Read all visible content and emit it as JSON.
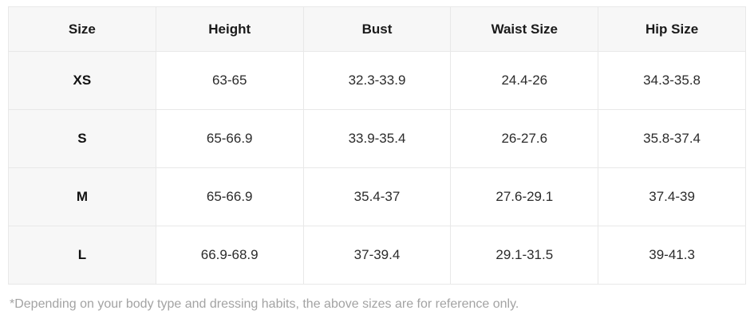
{
  "table": {
    "columns": [
      {
        "label": "Size"
      },
      {
        "label": "Height"
      },
      {
        "label": "Bust"
      },
      {
        "label": "Waist Size"
      },
      {
        "label": "Hip Size"
      }
    ],
    "rows": [
      {
        "size": "XS",
        "height": "63-65",
        "bust": "32.3-33.9",
        "waist": "24.4-26",
        "hip": "34.3-35.8"
      },
      {
        "size": "S",
        "height": "65-66.9",
        "bust": "33.9-35.4",
        "waist": "26-27.6",
        "hip": "35.8-37.4"
      },
      {
        "size": "M",
        "height": "65-66.9",
        "bust": "35.4-37",
        "waist": "27.6-29.1",
        "hip": "37.4-39"
      },
      {
        "size": "L",
        "height": "66.9-68.9",
        "bust": "37-39.4",
        "waist": "29.1-31.5",
        "hip": "39-41.3"
      }
    ]
  },
  "footnote": "*Depending on your body type and dressing habits, the above sizes are for reference only.",
  "colors": {
    "header_background": "#f7f7f7",
    "size_column_background": "#f7f7f7",
    "cell_background": "#ffffff",
    "border": "#e8e8e8",
    "header_text": "#1a1a1a",
    "cell_text": "#2b2b2b",
    "footnote_text": "#a3a3a3"
  }
}
